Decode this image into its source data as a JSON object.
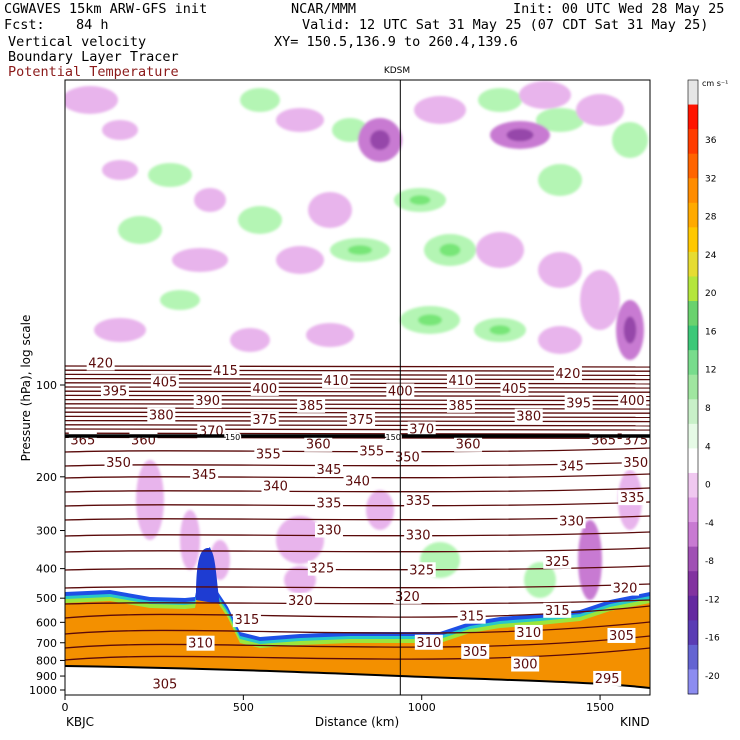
{
  "header": {
    "line1_left": "CGWAVES 15km ARW-GFS init",
    "line1_mid": "NCAR/MMM",
    "line1_right": "Init: 00 UTC Wed 28 May 25",
    "fcst_label": "Fcst:",
    "fcst_value": "84 h",
    "valid": "Valid: 12 UTC Sat 31 May 25 (07 CDT Sat 31 May 25)",
    "field1": "Vertical velocity",
    "field2": "Boundary Layer Tracer",
    "field3": "Potential Temperature",
    "xy": "XY= 150.5,136.9 to 260.4,139.6",
    "station_mid": "KDSM"
  },
  "colors": {
    "theta": "#5a0a0a",
    "bl_orange": "#f39000",
    "up_light": "#b4f5b4",
    "up_mid": "#78e678",
    "down_light": "#e8b4ec",
    "down_mid": "#c87ad2",
    "down_dark": "#9646aa"
  },
  "chart_data": {
    "type": "cross-section",
    "xlabel": "Distance (km)",
    "ylabel": "Pressure (hPa), log scale",
    "x_ticks": [
      0,
      500,
      1000,
      1500
    ],
    "y_ticks": [
      100,
      200,
      300,
      400,
      500,
      600,
      700,
      800,
      900,
      1000
    ],
    "x_left_label": "KBJC",
    "x_right_label": "KIND",
    "mid_station": "KDSM",
    "mid_station_x": 940,
    "theta_labels": [
      {
        "v": "420",
        "x": 100,
        "p": 85
      },
      {
        "v": "415",
        "x": 450,
        "p": 90
      },
      {
        "v": "410",
        "x": 760,
        "p": 97
      },
      {
        "v": "410",
        "x": 1110,
        "p": 97
      },
      {
        "v": "420",
        "x": 1410,
        "p": 92
      },
      {
        "v": "395",
        "x": 140,
        "p": 105
      },
      {
        "v": "405",
        "x": 280,
        "p": 98
      },
      {
        "v": "400",
        "x": 560,
        "p": 103
      },
      {
        "v": "400",
        "x": 940,
        "p": 105
      },
      {
        "v": "405",
        "x": 1260,
        "p": 103
      },
      {
        "v": "400",
        "x": 1590,
        "p": 113
      },
      {
        "v": "390",
        "x": 400,
        "p": 113
      },
      {
        "v": "385",
        "x": 690,
        "p": 117
      },
      {
        "v": "385",
        "x": 1110,
        "p": 117
      },
      {
        "v": "395",
        "x": 1440,
        "p": 115
      },
      {
        "v": "380",
        "x": 270,
        "p": 126
      },
      {
        "v": "375",
        "x": 560,
        "p": 130
      },
      {
        "v": "375",
        "x": 830,
        "p": 130
      },
      {
        "v": "380",
        "x": 1300,
        "p": 127
      },
      {
        "v": "370",
        "x": 410,
        "p": 142
      },
      {
        "v": "370",
        "x": 1000,
        "p": 140
      },
      {
        "v": "365",
        "x": 50,
        "p": 152
      },
      {
        "v": "360",
        "x": 220,
        "p": 152
      },
      {
        "v": "360",
        "x": 710,
        "p": 157
      },
      {
        "v": "360",
        "x": 1130,
        "p": 157
      },
      {
        "v": "365",
        "x": 1510,
        "p": 152
      },
      {
        "v": "375",
        "x": 1600,
        "p": 152
      },
      {
        "v": "355",
        "x": 570,
        "p": 169
      },
      {
        "v": "355",
        "x": 860,
        "p": 165
      },
      {
        "v": "350",
        "x": 150,
        "p": 180
      },
      {
        "v": "350",
        "x": 960,
        "p": 173
      },
      {
        "v": "350",
        "x": 1600,
        "p": 180
      },
      {
        "v": "345",
        "x": 390,
        "p": 197
      },
      {
        "v": "345",
        "x": 740,
        "p": 190
      },
      {
        "v": "345",
        "x": 1420,
        "p": 185
      },
      {
        "v": "340",
        "x": 590,
        "p": 215
      },
      {
        "v": "340",
        "x": 820,
        "p": 207
      },
      {
        "v": "335",
        "x": 740,
        "p": 245
      },
      {
        "v": "335",
        "x": 990,
        "p": 240
      },
      {
        "v": "335",
        "x": 1590,
        "p": 235
      },
      {
        "v": "330",
        "x": 740,
        "p": 300
      },
      {
        "v": "330",
        "x": 990,
        "p": 312
      },
      {
        "v": "330",
        "x": 1420,
        "p": 280
      },
      {
        "v": "325",
        "x": 720,
        "p": 400
      },
      {
        "v": "325",
        "x": 1000,
        "p": 405
      },
      {
        "v": "325",
        "x": 1380,
        "p": 380
      },
      {
        "v": "320",
        "x": 660,
        "p": 510
      },
      {
        "v": "320",
        "x": 960,
        "p": 495
      },
      {
        "v": "320",
        "x": 1570,
        "p": 465
      },
      {
        "v": "315",
        "x": 510,
        "p": 590
      },
      {
        "v": "315",
        "x": 1140,
        "p": 575
      },
      {
        "v": "315",
        "x": 1380,
        "p": 550
      },
      {
        "v": "310",
        "x": 380,
        "p": 705
      },
      {
        "v": "310",
        "x": 1020,
        "p": 700
      },
      {
        "v": "310",
        "x": 1300,
        "p": 650
      },
      {
        "v": "305",
        "x": 1150,
        "p": 750
      },
      {
        "v": "305",
        "x": 1560,
        "p": 665
      },
      {
        "v": "305",
        "x": 280,
        "p": 960
      },
      {
        "v": "300",
        "x": 1290,
        "p": 825
      },
      {
        "v": "295",
        "x": 1520,
        "p": 920
      }
    ],
    "tropopause_marks": [
      {
        "v": "150",
        "x": 470
      },
      {
        "v": "150",
        "x": 920
      }
    ],
    "colorbar_unit": "cm s⁻¹",
    "colorbar_labels": [
      "36",
      "32",
      "28",
      "24",
      "20",
      "16",
      "12",
      "8",
      "4",
      "0",
      "-4",
      "-8",
      "-12",
      "-16",
      "-20"
    ],
    "colorbar_colors": [
      "#e6e6e6",
      "#ff1400",
      "#ff3c00",
      "#ff6400",
      "#ff8c00",
      "#ffaa00",
      "#ffc800",
      "#e6dc32",
      "#b4e63c",
      "#6ad26e",
      "#3cc878",
      "#78dc8c",
      "#a0e6a0",
      "#c8f0c8",
      "#e6fae6",
      "#ffffff",
      "#f0c8f0",
      "#e0a0e6",
      "#c87ad2",
      "#a050b4",
      "#8232a0",
      "#6428a0",
      "#5a3cb4",
      "#6464d2",
      "#8c8cf0"
    ]
  }
}
